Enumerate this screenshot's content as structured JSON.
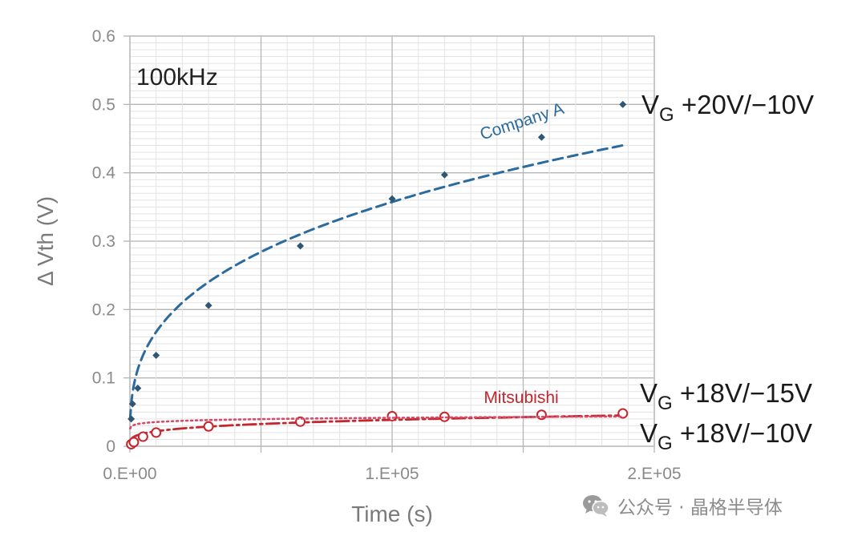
{
  "chart_data": {
    "type": "scatter",
    "xlabel": "Time (s)",
    "ylabel": "Δ Vth (V)",
    "xlim": [
      0,
      200000
    ],
    "ylim": [
      0,
      0.6
    ],
    "x_ticks": [
      0,
      100000,
      200000
    ],
    "x_tick_labels": [
      "0.E+00",
      "1.E+05",
      "2.E+05"
    ],
    "y_ticks": [
      0,
      0.1,
      0.2,
      0.3,
      0.4,
      0.5,
      0.6
    ],
    "y_tick_labels": [
      "0",
      "0.1",
      "0.2",
      "0.3",
      "0.4",
      "0.5",
      "0.6"
    ],
    "grid": true,
    "annotation": "100kHz",
    "series": [
      {
        "name": "Company A",
        "condition": {
          "prefix": "V",
          "sub": "G",
          "rest": " +20V/−10V"
        },
        "color": "#2a6a9c",
        "marker": "diamond",
        "x": [
          500,
          1000,
          3000,
          10000,
          30000,
          65000,
          100000,
          120000,
          157000,
          188000
        ],
        "y": [
          0.04,
          0.062,
          0.085,
          0.133,
          0.206,
          0.293,
          0.362,
          0.397,
          0.452,
          0.5
        ],
        "fit": {
          "a": 0.008,
          "p": 0.33
        }
      },
      {
        "name": "Mitsubishi",
        "condition": {
          "prefix": "V",
          "sub": "G",
          "rest": " +18V/−15V"
        },
        "color": "#c4262e",
        "marker": "circle-open",
        "x": [
          500,
          1500,
          5000,
          10000,
          30000,
          65000,
          100000,
          120000,
          157000,
          188000
        ],
        "y": [
          0.003,
          0.006,
          0.014,
          0.02,
          0.029,
          0.036,
          0.044,
          0.043,
          0.046,
          0.048
        ],
        "fit": {
          "a": 0.0023,
          "p": 0.245
        }
      },
      {
        "name": "",
        "condition": {
          "prefix": "V",
          "sub": "G",
          "rest": " +18V/−10V"
        },
        "color": "#d84a68",
        "marker": "none",
        "x": [],
        "y": [],
        "fit": {
          "a": 0.0186,
          "p": 0.07
        }
      }
    ]
  },
  "watermark": {
    "icon": "wechat-icon",
    "text": "公众号 · 晶格半导体"
  }
}
